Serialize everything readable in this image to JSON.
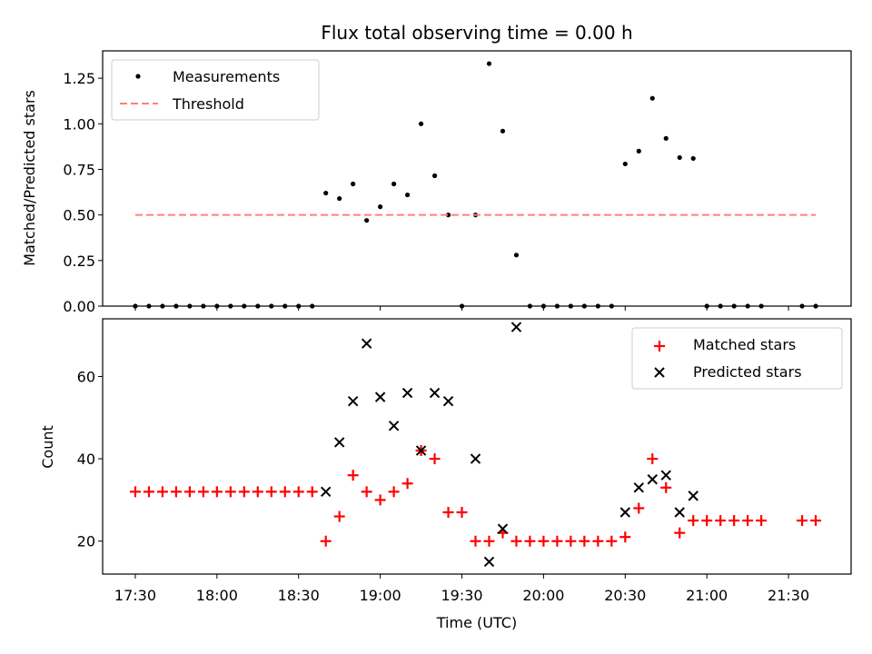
{
  "chart_data": {
    "type": "scatter",
    "xlabel": "Time (UTC)",
    "x_tick_labels": [
      "17:30",
      "18:00",
      "18:30",
      "19:00",
      "19:30",
      "20:00",
      "20:30",
      "21:00",
      "21:30"
    ],
    "x_tick_minutes": [
      1050,
      1080,
      1110,
      1140,
      1170,
      1200,
      1230,
      1260,
      1290
    ],
    "xlim_minutes": [
      1038,
      1313
    ],
    "panels": [
      {
        "title": "Flux total observing time = 0.00 h",
        "ylabel": "Matched/Predicted stars",
        "ylim": [
          0,
          1.4
        ],
        "y_tick_labels": [
          "0.00",
          "0.25",
          "0.50",
          "0.75",
          "1.00",
          "1.25"
        ],
        "y_ticks": [
          0,
          0.25,
          0.5,
          0.75,
          1.0,
          1.25
        ],
        "legend_position": "upper-left",
        "legend": [
          "Measurements",
          "Threshold"
        ],
        "series": [
          {
            "name": "Measurements",
            "marker": "dot",
            "color": "#000000",
            "x": [
              1050,
              1055,
              1060,
              1065,
              1070,
              1075,
              1080,
              1085,
              1090,
              1095,
              1100,
              1105,
              1110,
              1115,
              1120,
              1125,
              1130,
              1135,
              1140,
              1145,
              1150,
              1155,
              1160,
              1165,
              1170,
              1175,
              1180,
              1185,
              1190,
              1195,
              1200,
              1205,
              1210,
              1215,
              1220,
              1225,
              1230,
              1235,
              1240,
              1245,
              1250,
              1255,
              1260,
              1265,
              1270,
              1275,
              1280,
              1295,
              1300
            ],
            "y": [
              0,
              0,
              0,
              0,
              0,
              0,
              0,
              0,
              0,
              0,
              0,
              0,
              0,
              0,
              0.62,
              0.59,
              0.67,
              0.47,
              0.545,
              0.67,
              0.61,
              1.0,
              0.715,
              0.5,
              0,
              0.5,
              1.33,
              0.96,
              0.28,
              0,
              0,
              0,
              0,
              0,
              0,
              0,
              0.78,
              0.85,
              1.14,
              0.92,
              0.815,
              0.81,
              0,
              0,
              0,
              0,
              0,
              0,
              0
            ]
          },
          {
            "name": "Threshold",
            "line": "dashed",
            "color": "#ff7f7f",
            "x": [
              1050,
              1300
            ],
            "y": [
              0.5,
              0.5
            ]
          }
        ]
      },
      {
        "ylabel": "Count",
        "ylim": [
          12,
          74
        ],
        "y_tick_labels": [
          "20",
          "40",
          "60"
        ],
        "y_ticks": [
          20,
          40,
          60
        ],
        "legend_position": "upper-right",
        "legend": [
          "Matched stars",
          "Predicted stars"
        ],
        "series": [
          {
            "name": "Matched stars",
            "marker": "plus",
            "color": "#ff0000",
            "x": [
              1050,
              1055,
              1060,
              1065,
              1070,
              1075,
              1080,
              1085,
              1090,
              1095,
              1100,
              1105,
              1110,
              1115,
              1120,
              1125,
              1130,
              1135,
              1140,
              1145,
              1150,
              1155,
              1160,
              1165,
              1170,
              1175,
              1180,
              1185,
              1190,
              1195,
              1200,
              1205,
              1210,
              1215,
              1220,
              1225,
              1230,
              1235,
              1240,
              1245,
              1250,
              1255,
              1260,
              1265,
              1270,
              1275,
              1280,
              1295,
              1300
            ],
            "y": [
              32,
              32,
              32,
              32,
              32,
              32,
              32,
              32,
              32,
              32,
              32,
              32,
              32,
              32,
              20,
              26,
              36,
              32,
              30,
              32,
              34,
              42,
              40,
              27,
              27,
              20,
              20,
              22,
              20,
              20,
              20,
              20,
              20,
              20,
              20,
              20,
              21,
              28,
              40,
              33,
              22,
              25,
              25,
              25,
              25,
              25,
              25,
              25,
              25
            ]
          },
          {
            "name": "Predicted stars",
            "marker": "x",
            "color": "#000000",
            "x": [
              1120,
              1125,
              1130,
              1135,
              1140,
              1145,
              1150,
              1155,
              1160,
              1165,
              1175,
              1180,
              1185,
              1190,
              1230,
              1235,
              1240,
              1245,
              1250,
              1255
            ],
            "y": [
              32,
              44,
              54,
              68,
              55,
              48,
              56,
              42,
              56,
              54,
              40,
              15,
              23,
              72,
              27,
              33,
              35,
              36,
              27,
              31
            ]
          }
        ]
      }
    ]
  }
}
